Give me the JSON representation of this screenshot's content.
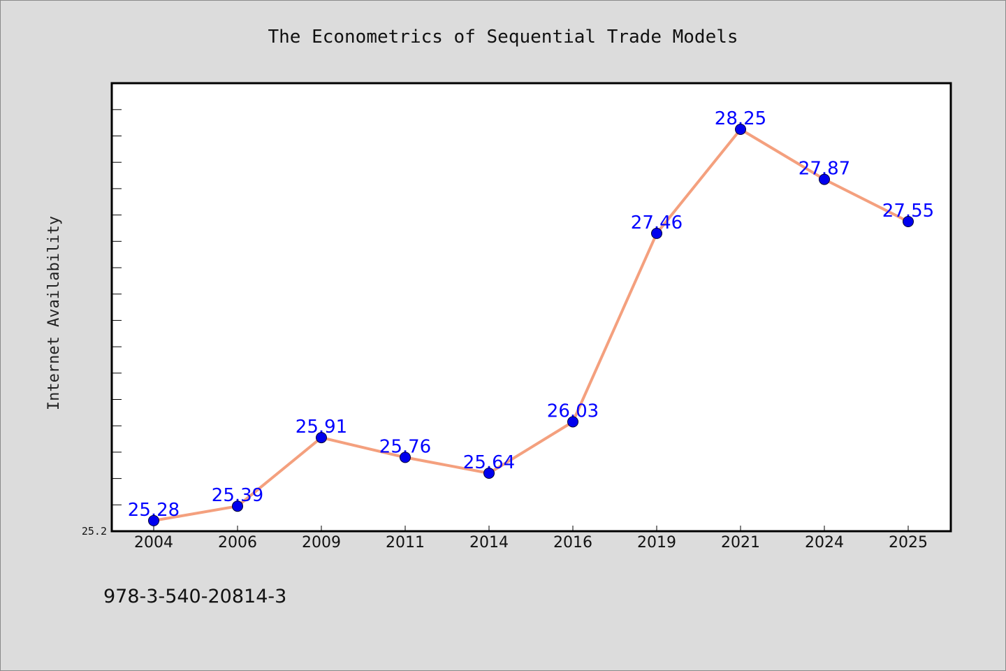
{
  "chart_data": {
    "type": "line",
    "title": "The Econometrics of Sequential Trade Models",
    "xlabel": "",
    "ylabel": "Internet Availability",
    "categories": [
      "2004",
      "2006",
      "2009",
      "2011",
      "2014",
      "2016",
      "2019",
      "2021",
      "2024",
      "2025"
    ],
    "series": [
      {
        "values": [
          25.28,
          25.39,
          25.91,
          25.76,
          25.64,
          26.03,
          27.46,
          28.25,
          27.87,
          27.55
        ],
        "color": "#f4a07e",
        "marker_color": "#0000ee"
      }
    ],
    "data_labels": [
      "25.28",
      "25.39",
      "25.91",
      "25.76",
      "25.64",
      "26.03",
      "27.46",
      "28.25",
      "27.87",
      "27.55"
    ],
    "yticks": [
      "25.2"
    ],
    "ylim": [
      25.2,
      28.6
    ],
    "grid": false,
    "legend": "none"
  },
  "footer": {
    "isbn": "978-3-540-20814-3"
  },
  "colors": {
    "background": "#dcdcdc",
    "plot_background": "#ffffff",
    "line": "#f4a07e",
    "marker": "#0000ee",
    "label": "#0000ff"
  }
}
